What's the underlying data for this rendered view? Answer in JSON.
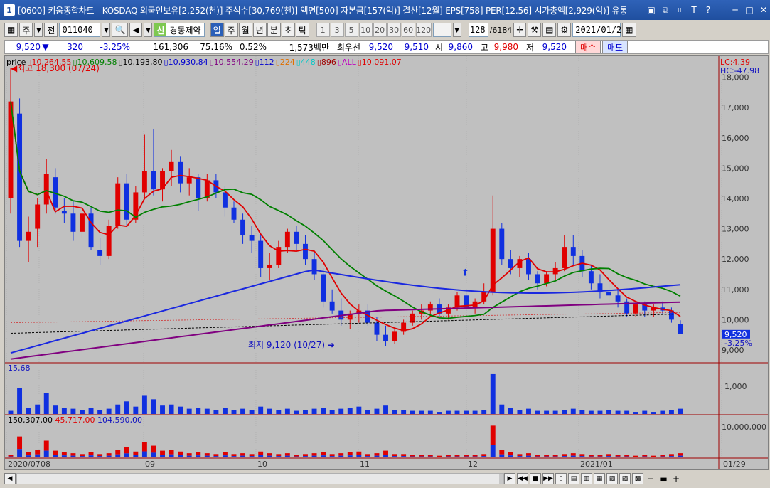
{
  "titlebar": {
    "app_badge": "1",
    "title": "[0600] 키움종합차트 - KOSDAQ 외국인보유[2,252(천)] 주식수[30,769(천)] 액면[500] 자본금[157(억)] 결산[12월] EPS[758] PER[12.56] 시가총액[2,929(억)] 유통"
  },
  "toolbar": {
    "market": "주",
    "type": "전",
    "code": "011040",
    "stock_tag": "신",
    "stock_name": "경동제약",
    "periods": [
      "일",
      "주",
      "월",
      "년",
      "분",
      "초",
      "틱"
    ],
    "active_period": "일",
    "numbers": [
      "1",
      "3",
      "5",
      "10",
      "20",
      "30",
      "60",
      "120"
    ],
    "count": "128",
    "total": "/6184",
    "date": "2021/01/29"
  },
  "quote": {
    "price": "9,520",
    "arrow": "▼",
    "change": "320",
    "change_pct": "-3.25%",
    "volume": "161,306",
    "vol_ratio": "75.16%",
    "turnover": "0.52%",
    "amount": "1,573백만",
    "best_label": "최우선",
    "best_sell": "9,520",
    "best_buy": "9,510",
    "open_label": "시",
    "open": "9,860",
    "high_label": "고",
    "high": "9,980",
    "low_label": "저",
    "low": "9,520",
    "buy_btn": "매수",
    "sell_btn": "매도"
  },
  "legend": {
    "price": "price",
    "ma": [
      {
        "value": "10,264,55",
        "color": "#e00000"
      },
      {
        "value": "10,609,58",
        "color": "#008000"
      },
      {
        "value": "10,193,80",
        "color": "#000000"
      },
      {
        "value": "10,930,84",
        "color": "#0000d0"
      },
      {
        "value": "10,554,29",
        "color": "#800080"
      },
      {
        "value": "112",
        "color": "#0000d0"
      },
      {
        "value": "224",
        "color": "#e07000"
      },
      {
        "value": "448",
        "color": "#00c8c8"
      },
      {
        "value": "896",
        "color": "#a00000"
      },
      {
        "value": "ALL",
        "color": "#c000c0"
      },
      {
        "value": "10,091,07",
        "color": "#e00000"
      }
    ]
  },
  "right_labels": {
    "lc": "LC:4.39",
    "hc": "HC:-47.98",
    "price_tag": "9,520",
    "price_pct": "-3.25%"
  },
  "annotations": {
    "high": "최고 18,300 (07/24)",
    "low": "최저 9,120 (10/27)"
  },
  "y_ticks": [
    "18,000",
    "17,000",
    "16,000",
    "15,000",
    "14,000",
    "13,000",
    "12,000",
    "11,000",
    "10,000",
    "9,000"
  ],
  "volume_panel": {
    "label": "15,68",
    "tick": "1,000"
  },
  "amount_panel": {
    "label_1": "150,307,00",
    "label_2": "45,717,00",
    "label_3": "104,590,00",
    "tick": "10,000,000"
  },
  "x_ticks": [
    "2020/07",
    "08",
    "09",
    "10",
    "11",
    "12",
    "2021/01",
    "01/29"
  ],
  "chart_data": {
    "type": "candlestick",
    "y_range": [
      8600,
      18600
    ],
    "series_hint": "daily candles Jul 2020 - Jan 2021 with MA lines",
    "candles": [
      [
        14000,
        18300,
        13500,
        17200
      ],
      [
        16800,
        17300,
        12400,
        12600
      ],
      [
        12600,
        13400,
        11900,
        12900
      ],
      [
        13000,
        14000,
        12400,
        13800
      ],
      [
        13800,
        15300,
        13500,
        14800
      ],
      [
        14700,
        15000,
        13500,
        13700
      ],
      [
        13600,
        14000,
        13200,
        13500
      ],
      [
        13500,
        13900,
        12600,
        12900
      ],
      [
        12900,
        13600,
        12700,
        13500
      ],
      [
        13500,
        13700,
        12300,
        12400
      ],
      [
        12300,
        12700,
        11800,
        12100
      ],
      [
        12100,
        13300,
        12000,
        13100
      ],
      [
        13100,
        14700,
        13000,
        14500
      ],
      [
        14500,
        14800,
        13100,
        13300
      ],
      [
        13300,
        14400,
        13200,
        14200
      ],
      [
        14200,
        16100,
        14000,
        14900
      ],
      [
        14900,
        16300,
        14100,
        14300
      ],
      [
        14300,
        15000,
        13900,
        14900
      ],
      [
        14900,
        15600,
        14400,
        15200
      ],
      [
        15200,
        15400,
        14200,
        14500
      ],
      [
        14500,
        15000,
        14100,
        14700
      ],
      [
        14700,
        14800,
        13600,
        14000
      ],
      [
        14000,
        14800,
        13900,
        14600
      ],
      [
        14600,
        14800,
        14000,
        14200
      ],
      [
        14200,
        14400,
        13400,
        13700
      ],
      [
        13700,
        13900,
        13200,
        13300
      ],
      [
        13300,
        13500,
        12500,
        12800
      ],
      [
        12800,
        13100,
        12200,
        12600
      ],
      [
        12600,
        12800,
        11400,
        11700
      ],
      [
        11700,
        12200,
        11300,
        11800
      ],
      [
        11800,
        12600,
        11700,
        12400
      ],
      [
        12400,
        13000,
        12200,
        12900
      ],
      [
        12900,
        13100,
        12300,
        12500
      ],
      [
        12500,
        12800,
        11800,
        12000
      ],
      [
        12000,
        12200,
        11300,
        11500
      ],
      [
        11500,
        11700,
        10400,
        10600
      ],
      [
        10600,
        11000,
        10200,
        10300
      ],
      [
        10300,
        10700,
        9800,
        10000
      ],
      [
        10000,
        10300,
        9700,
        10200
      ],
      [
        10200,
        10500,
        9900,
        10300
      ],
      [
        10300,
        10500,
        9800,
        9900
      ],
      [
        9900,
        10100,
        9300,
        9500
      ],
      [
        9500,
        9800,
        9120,
        9300
      ],
      [
        9300,
        9700,
        9200,
        9600
      ],
      [
        9600,
        10000,
        9500,
        9900
      ],
      [
        9900,
        10300,
        9800,
        10200
      ],
      [
        10200,
        10500,
        10000,
        10300
      ],
      [
        10300,
        10600,
        10100,
        10500
      ],
      [
        10500,
        10700,
        10100,
        10200
      ],
      [
        10200,
        10500,
        10000,
        10400
      ],
      [
        10400,
        10900,
        10300,
        10800
      ],
      [
        10800,
        11000,
        10300,
        10400
      ],
      [
        10400,
        10700,
        10200,
        10600
      ],
      [
        10600,
        11200,
        10500,
        10900
      ],
      [
        10900,
        14100,
        10800,
        13000
      ],
      [
        13000,
        13200,
        11800,
        12000
      ],
      [
        12000,
        12300,
        11500,
        11700
      ],
      [
        11700,
        12100,
        11400,
        12000
      ],
      [
        12000,
        12200,
        11300,
        11500
      ],
      [
        11500,
        11600,
        11000,
        11200
      ],
      [
        11200,
        11600,
        11100,
        11500
      ],
      [
        11500,
        11900,
        11300,
        11700
      ],
      [
        11700,
        12800,
        11600,
        12400
      ],
      [
        12400,
        12800,
        11800,
        12100
      ],
      [
        12100,
        12300,
        11400,
        11600
      ],
      [
        11600,
        11800,
        11000,
        11200
      ],
      [
        11200,
        11500,
        10700,
        10900
      ],
      [
        10900,
        11300,
        10600,
        10800
      ],
      [
        10800,
        11000,
        10400,
        10600
      ],
      [
        10600,
        10700,
        10100,
        10200
      ],
      [
        10200,
        10600,
        10100,
        10500
      ],
      [
        10500,
        10600,
        10100,
        10300
      ],
      [
        10300,
        10500,
        10100,
        10400
      ],
      [
        10400,
        10600,
        10200,
        10300
      ],
      [
        10300,
        10400,
        9900,
        10000
      ],
      [
        9860,
        9980,
        9520,
        9520
      ]
    ],
    "volume": [
      3,
      25,
      6,
      9,
      20,
      8,
      6,
      5,
      4,
      6,
      4,
      5,
      9,
      12,
      7,
      18,
      14,
      8,
      9,
      7,
      5,
      6,
      5,
      4,
      6,
      4,
      5,
      4,
      7,
      5,
      4,
      5,
      3,
      4,
      5,
      6,
      4,
      5,
      6,
      7,
      4,
      5,
      8,
      4,
      4,
      3,
      3,
      3,
      2,
      3,
      3,
      3,
      3,
      4,
      38,
      9,
      6,
      4,
      5,
      3,
      3,
      3,
      4,
      5,
      4,
      3,
      3,
      4,
      3,
      3,
      2,
      3,
      2,
      3,
      4,
      5
    ]
  }
}
